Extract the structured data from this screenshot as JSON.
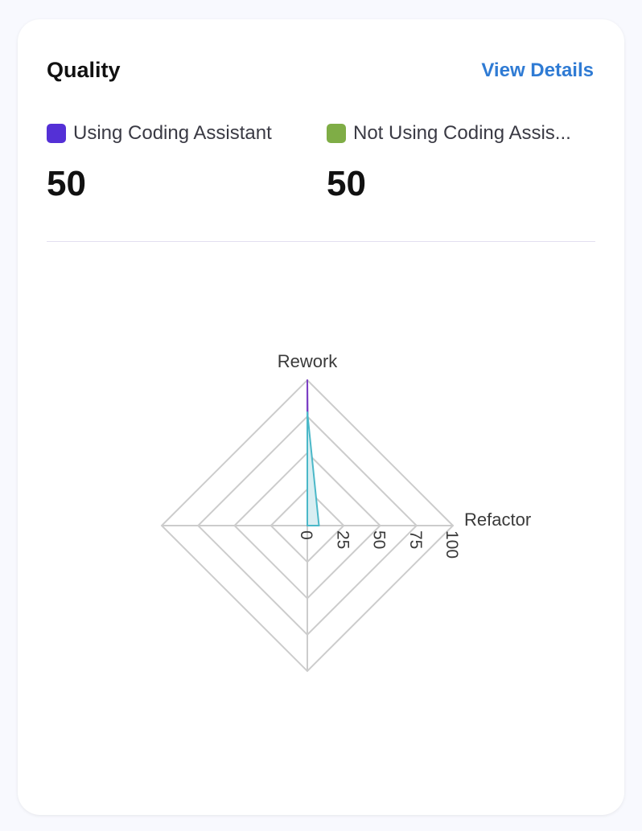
{
  "card": {
    "title": "Quality",
    "view_details": "View Details",
    "legend": [
      {
        "label": "Using Coding Assistant",
        "color": "#5430d6",
        "value": "50"
      },
      {
        "label": "Not Using Coding Assis...",
        "color": "#7fad46",
        "value": "50"
      }
    ]
  },
  "chart_data": {
    "type": "radar",
    "axes": [
      "Rework",
      "Refactor",
      "",
      ""
    ],
    "ticks": [
      "0",
      "25",
      "50",
      "75",
      "100"
    ],
    "range": [
      0,
      100
    ],
    "grid": true,
    "series": [
      {
        "values": [
          100,
          1,
          0,
          0
        ],
        "color": "#7b3fc4",
        "fill": "none"
      },
      {
        "values": [
          78,
          8,
          0,
          0
        ],
        "color": "#4bb8c8",
        "fill": "#d8eef2"
      }
    ]
  }
}
